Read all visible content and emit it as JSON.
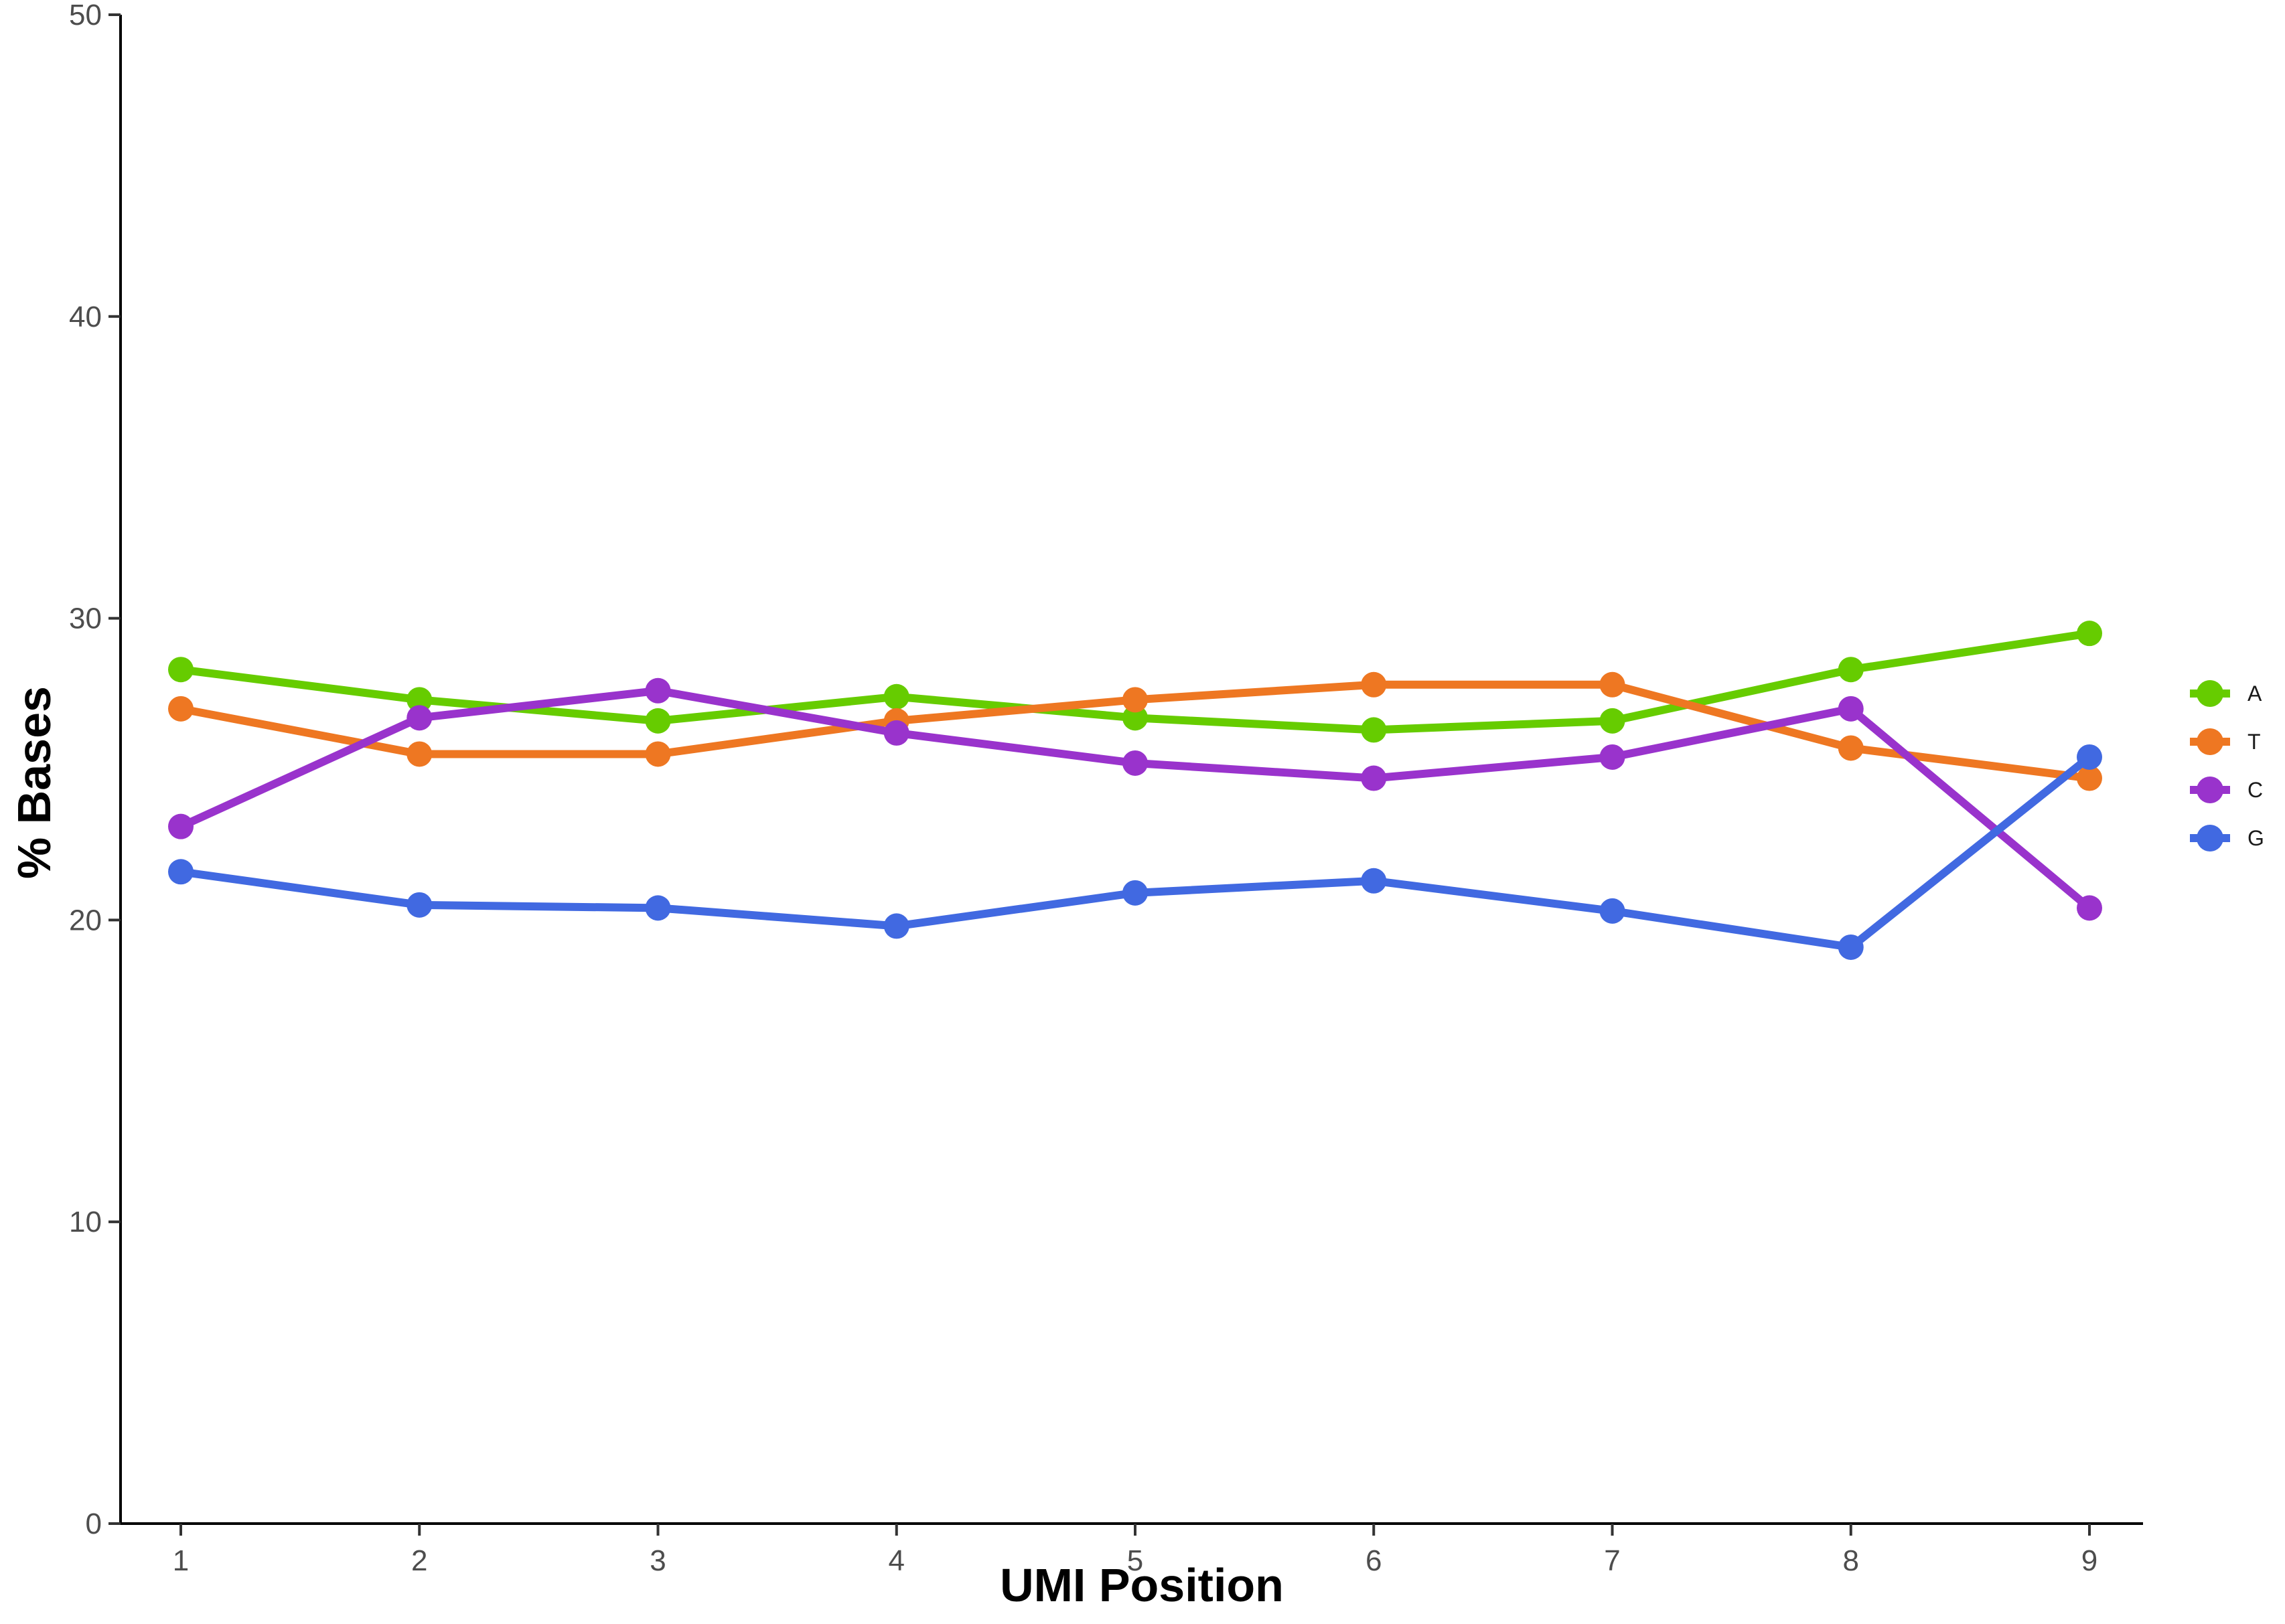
{
  "chart_data": {
    "type": "line",
    "xlabel": "UMI Position",
    "ylabel": "% Bases",
    "x": [
      1,
      2,
      3,
      4,
      5,
      6,
      7,
      8,
      9
    ],
    "x_ticks": [
      "1",
      "2",
      "3",
      "4",
      "5",
      "6",
      "7",
      "8",
      "9"
    ],
    "ylim": [
      0,
      50
    ],
    "y_ticks": [
      "0",
      "10",
      "20",
      "30",
      "40",
      "50"
    ],
    "grid": false,
    "legend": "right",
    "series": [
      {
        "name": "A",
        "color": "#66CC00",
        "values": [
          28.3,
          27.3,
          26.6,
          27.4,
          26.7,
          26.3,
          26.6,
          28.3,
          29.5
        ]
      },
      {
        "name": "T",
        "color": "#EE7722",
        "values": [
          27.0,
          25.5,
          25.5,
          26.6,
          27.3,
          27.8,
          27.8,
          25.7,
          24.7
        ]
      },
      {
        "name": "C",
        "color": "#9933CC",
        "values": [
          23.1,
          26.7,
          27.6,
          26.2,
          25.2,
          24.7,
          25.4,
          27.0,
          20.4
        ]
      },
      {
        "name": "G",
        "color": "#4169E1",
        "values": [
          21.6,
          20.5,
          20.4,
          19.8,
          20.9,
          21.3,
          20.3,
          19.1,
          25.4
        ]
      }
    ]
  }
}
